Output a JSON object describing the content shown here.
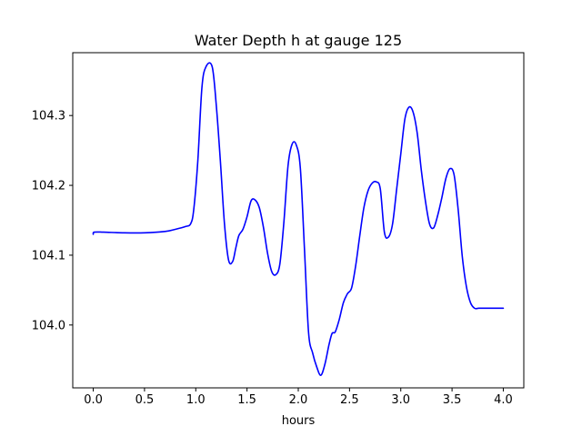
{
  "chart_data": {
    "type": "line",
    "title": "Water Depth h at gauge 125",
    "xlabel": "hours",
    "ylabel": "",
    "xlim": [
      -0.2,
      4.2
    ],
    "ylim": [
      103.91,
      104.39
    ],
    "xticks": [
      0.0,
      0.5,
      1.0,
      1.5,
      2.0,
      2.5,
      3.0,
      3.5,
      4.0
    ],
    "xtick_labels": [
      "0.0",
      "0.5",
      "1.0",
      "1.5",
      "2.0",
      "2.5",
      "3.0",
      "3.5",
      "4.0"
    ],
    "yticks": [
      104.0,
      104.1,
      104.2,
      104.3
    ],
    "ytick_labels": [
      "104.0",
      "104.1",
      "104.2",
      "104.3"
    ],
    "grid": false,
    "legend": "none",
    "series": [
      {
        "color": "#0000ff",
        "x": [
          0.0,
          0.01,
          0.1,
          0.3,
          0.5,
          0.7,
          0.8,
          0.9,
          0.95,
          0.98,
          1.02,
          1.06,
          1.1,
          1.16,
          1.2,
          1.24,
          1.28,
          1.32,
          1.36,
          1.39,
          1.42,
          1.46,
          1.5,
          1.54,
          1.58,
          1.62,
          1.66,
          1.7,
          1.74,
          1.78,
          1.82,
          1.86,
          1.9,
          1.94,
          1.98,
          2.02,
          2.06,
          2.1,
          2.14,
          2.18,
          2.22,
          2.26,
          2.3,
          2.33,
          2.36,
          2.4,
          2.44,
          2.48,
          2.52,
          2.56,
          2.6,
          2.64,
          2.68,
          2.72,
          2.76,
          2.8,
          2.84,
          2.88,
          2.92,
          2.96,
          3.0,
          3.04,
          3.08,
          3.12,
          3.16,
          3.2,
          3.24,
          3.28,
          3.32,
          3.36,
          3.4,
          3.44,
          3.48,
          3.52,
          3.56,
          3.6,
          3.64,
          3.68,
          3.72,
          3.76,
          3.8,
          3.84,
          3.88,
          3.92,
          3.96,
          4.0
        ],
        "values": [
          104.13,
          104.133,
          104.133,
          104.132,
          104.132,
          104.134,
          104.137,
          104.141,
          104.145,
          104.165,
          104.235,
          104.34,
          104.37,
          104.37,
          104.315,
          104.235,
          104.145,
          104.093,
          104.091,
          104.11,
          104.128,
          104.137,
          104.155,
          104.178,
          104.179,
          104.168,
          104.14,
          104.103,
          104.077,
          104.072,
          104.087,
          104.148,
          104.228,
          104.259,
          104.258,
          104.225,
          104.11,
          103.99,
          103.96,
          103.94,
          103.928,
          103.944,
          103.972,
          103.988,
          103.99,
          104.008,
          104.032,
          104.045,
          104.053,
          104.085,
          104.128,
          104.168,
          104.192,
          104.203,
          104.205,
          104.195,
          104.133,
          104.126,
          104.145,
          104.195,
          104.245,
          104.295,
          104.312,
          104.305,
          104.275,
          104.222,
          104.178,
          104.145,
          104.139,
          104.157,
          104.182,
          104.21,
          104.224,
          104.215,
          104.165,
          104.098,
          104.055,
          104.032,
          104.024,
          104.024,
          104.024,
          104.024,
          104.024,
          104.024,
          104.024,
          104.024
        ]
      }
    ]
  }
}
